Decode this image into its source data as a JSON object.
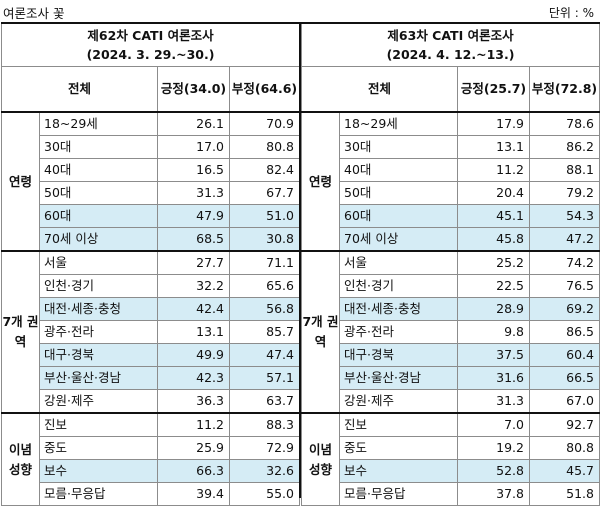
{
  "header": {
    "title": "여론조사 꽃",
    "unit": "단위 : %"
  },
  "surveys": [
    {
      "title": "제62차 CATI 여론조사",
      "period": "(2024. 3. 29.~30.)",
      "col_total": "전체",
      "col_pos": "긍정(34.0)",
      "col_neg": "부정(64.6)",
      "groups": [
        {
          "label": "연령",
          "rows": [
            {
              "label": "18~29세",
              "pos": "26.1",
              "neg": "70.9",
              "hl": false
            },
            {
              "label": "30대",
              "pos": "17.0",
              "neg": "80.8",
              "hl": false
            },
            {
              "label": "40대",
              "pos": "16.5",
              "neg": "82.4",
              "hl": false
            },
            {
              "label": "50대",
              "pos": "31.3",
              "neg": "67.7",
              "hl": false
            },
            {
              "label": "60대",
              "pos": "47.9",
              "neg": "51.0",
              "hl": true
            },
            {
              "label": "70세 이상",
              "pos": "68.5",
              "neg": "30.8",
              "hl": true
            }
          ]
        },
        {
          "label": "7개 권역",
          "rows": [
            {
              "label": "서울",
              "pos": "27.7",
              "neg": "71.1",
              "hl": false
            },
            {
              "label": "인천·경기",
              "pos": "32.2",
              "neg": "65.6",
              "hl": false
            },
            {
              "label": "대전·세종·충청",
              "pos": "42.4",
              "neg": "56.8",
              "hl": true
            },
            {
              "label": "광주·전라",
              "pos": "13.1",
              "neg": "85.7",
              "hl": false
            },
            {
              "label": "대구·경북",
              "pos": "49.9",
              "neg": "47.4",
              "hl": true
            },
            {
              "label": "부산·울산·경남",
              "pos": "42.3",
              "neg": "57.1",
              "hl": true
            },
            {
              "label": "강원·제주",
              "pos": "36.3",
              "neg": "63.7",
              "hl": false
            }
          ]
        },
        {
          "label": "이념 성향",
          "rows": [
            {
              "label": "진보",
              "pos": "11.2",
              "neg": "88.3",
              "hl": false
            },
            {
              "label": "중도",
              "pos": "25.9",
              "neg": "72.9",
              "hl": false
            },
            {
              "label": "보수",
              "pos": "66.3",
              "neg": "32.6",
              "hl": true
            },
            {
              "label": "모름·무응답",
              "pos": "39.4",
              "neg": "55.0",
              "hl": false
            }
          ]
        }
      ]
    },
    {
      "title": "제63차 CATI 여론조사",
      "period": "(2024. 4. 12.~13.)",
      "col_total": "전체",
      "col_pos": "긍정(25.7)",
      "col_neg": "부정(72.8)",
      "groups": [
        {
          "label": "연령",
          "rows": [
            {
              "label": "18~29세",
              "pos": "17.9",
              "neg": "78.6",
              "hl": false
            },
            {
              "label": "30대",
              "pos": "13.1",
              "neg": "86.2",
              "hl": false
            },
            {
              "label": "40대",
              "pos": "11.2",
              "neg": "88.1",
              "hl": false
            },
            {
              "label": "50대",
              "pos": "20.4",
              "neg": "79.2",
              "hl": false
            },
            {
              "label": "60대",
              "pos": "45.1",
              "neg": "54.3",
              "hl": true
            },
            {
              "label": "70세 이상",
              "pos": "45.8",
              "neg": "47.2",
              "hl": true
            }
          ]
        },
        {
          "label": "7개 권역",
          "rows": [
            {
              "label": "서울",
              "pos": "25.2",
              "neg": "74.2",
              "hl": false
            },
            {
              "label": "인천·경기",
              "pos": "22.5",
              "neg": "76.5",
              "hl": false
            },
            {
              "label": "대전·세종·충청",
              "pos": "28.9",
              "neg": "69.2",
              "hl": true
            },
            {
              "label": "광주·전라",
              "pos": "9.8",
              "neg": "86.5",
              "hl": false
            },
            {
              "label": "대구·경북",
              "pos": "37.5",
              "neg": "60.4",
              "hl": true
            },
            {
              "label": "부산·울산·경남",
              "pos": "31.6",
              "neg": "66.5",
              "hl": true
            },
            {
              "label": "강원·제주",
              "pos": "31.3",
              "neg": "67.0",
              "hl": false
            }
          ]
        },
        {
          "label": "이념 성향",
          "rows": [
            {
              "label": "진보",
              "pos": "7.0",
              "neg": "92.7",
              "hl": false
            },
            {
              "label": "중도",
              "pos": "19.2",
              "neg": "80.8",
              "hl": false
            },
            {
              "label": "보수",
              "pos": "52.8",
              "neg": "45.7",
              "hl": true
            },
            {
              "label": "모름·무응답",
              "pos": "37.8",
              "neg": "51.8",
              "hl": false
            }
          ]
        }
      ]
    }
  ]
}
